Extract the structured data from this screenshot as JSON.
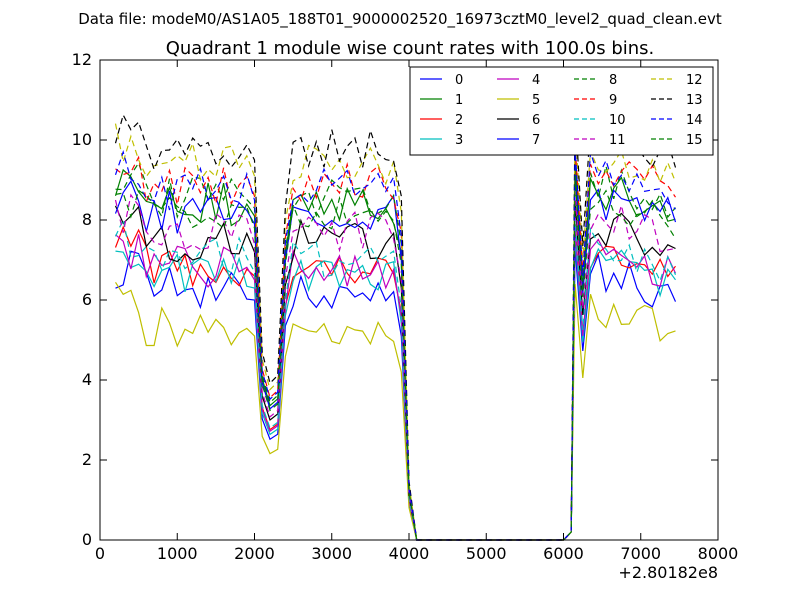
{
  "chart_data": {
    "type": "line",
    "suptitle": "Data file: modeM0/AS1A05_188T01_9000002520_16973cztM0_level2_quad_clean.evt",
    "title": "Quadrant 1 module wise count rates with 100.0s bins.",
    "xlabel": "",
    "ylabel": "",
    "xlim": [
      0,
      8000
    ],
    "ylim": [
      0,
      12
    ],
    "x_offset_label": "+2.80182e8",
    "xticks": [
      0,
      1000,
      2000,
      3000,
      4000,
      5000,
      6000,
      7000,
      8000
    ],
    "yticks": [
      0,
      2,
      4,
      6,
      8,
      10,
      12
    ],
    "legend_position": "top-right",
    "segments": [
      {
        "x_start": 200,
        "x_end": 2000,
        "dip": false
      },
      {
        "x_start": 2000,
        "x_end": 2300,
        "dip": true
      },
      {
        "x_start": 2300,
        "x_end": 3900,
        "dip": false
      },
      {
        "x_start": 3900,
        "x_end": 4100,
        "dip": "fall"
      },
      {
        "x_start": 4100,
        "x_end": 6100,
        "zero": true
      },
      {
        "x_start": 6100,
        "x_end": 7500,
        "dip": false
      }
    ],
    "series": [
      {
        "name": "0",
        "color": "#0000ff",
        "dash": "solid",
        "level": 6.3
      },
      {
        "name": "1",
        "color": "#008000",
        "dash": "solid",
        "level": 8.4
      },
      {
        "name": "2",
        "color": "#ff0000",
        "dash": "solid",
        "level": 6.9
      },
      {
        "name": "3",
        "color": "#00bfbf",
        "dash": "solid",
        "level": 6.6
      },
      {
        "name": "4",
        "color": "#bf00bf",
        "dash": "solid",
        "level": 6.8
      },
      {
        "name": "5",
        "color": "#bfbf00",
        "dash": "solid",
        "level": 5.4
      },
      {
        "name": "6",
        "color": "#000000",
        "dash": "solid",
        "level": 7.5
      },
      {
        "name": "7",
        "color": "#0000ff",
        "dash": "solid",
        "level": 8.2
      },
      {
        "name": "8",
        "color": "#008000",
        "dash": "dashed",
        "level": 8.6
      },
      {
        "name": "9",
        "color": "#ff0000",
        "dash": "dashed",
        "level": 8.9
      },
      {
        "name": "10",
        "color": "#00bfbf",
        "dash": "dashed",
        "level": 7.0
      },
      {
        "name": "11",
        "color": "#bf00bf",
        "dash": "dashed",
        "level": 7.7
      },
      {
        "name": "12",
        "color": "#bfbf00",
        "dash": "dashed",
        "level": 9.4
      },
      {
        "name": "13",
        "color": "#000000",
        "dash": "dashed",
        "level": 9.8
      },
      {
        "name": "14",
        "color": "#0000ff",
        "dash": "dashed",
        "level": 8.8
      },
      {
        "name": "15",
        "color": "#008000",
        "dash": "dashed",
        "level": 8.1
      }
    ]
  }
}
